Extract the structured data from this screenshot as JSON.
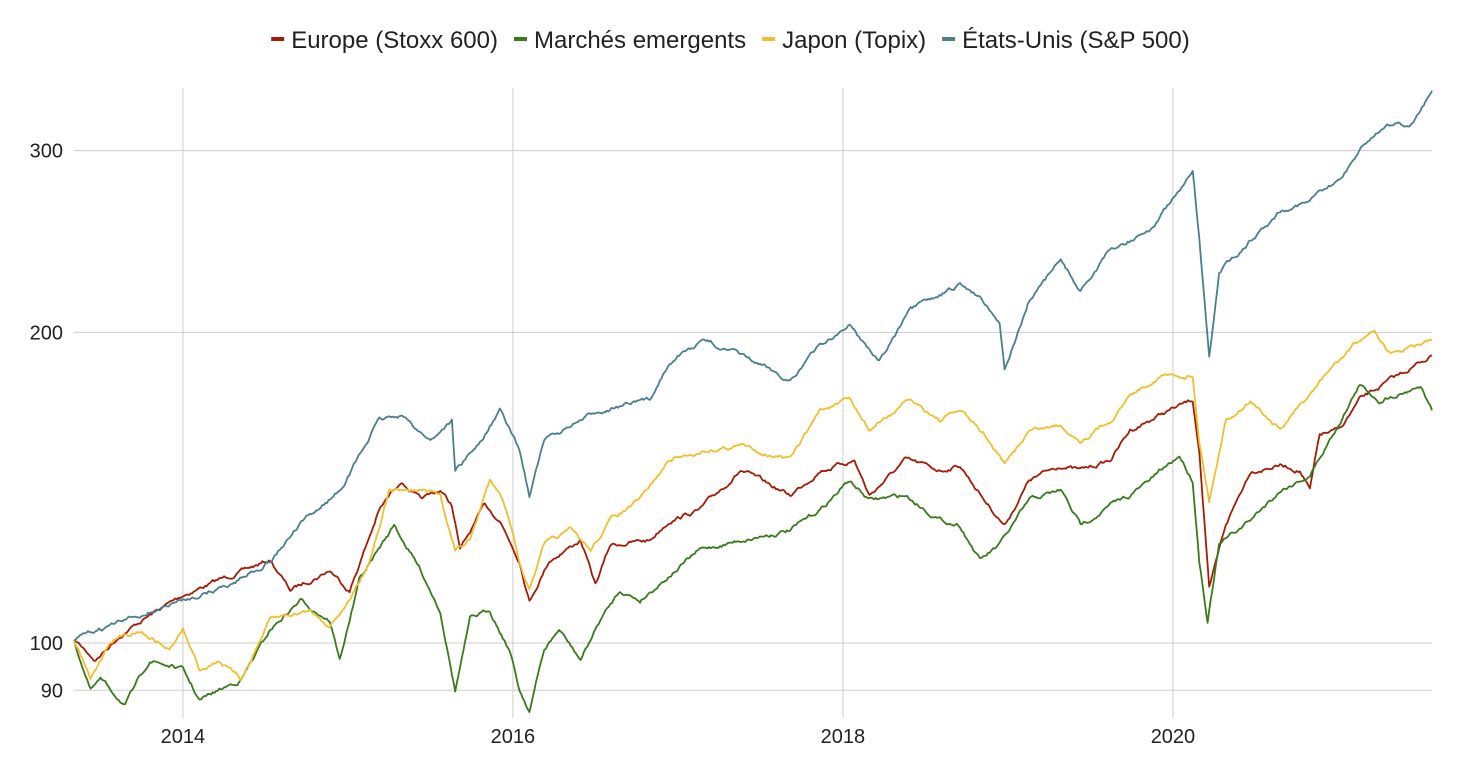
{
  "chart_data": {
    "type": "line",
    "title": "",
    "xlabel": "",
    "ylabel": "",
    "y_scale": "log",
    "ylim": [
      84.6,
      345
    ],
    "xlim": [
      2013.34,
      2021.57
    ],
    "grid": true,
    "legend_position": "top-center",
    "x_ticks": [
      2014,
      2016,
      2018,
      2020
    ],
    "x_tick_labels": [
      "2014",
      "2016",
      "2018",
      "2020"
    ],
    "y_ticks": [
      90,
      100,
      200,
      300
    ],
    "y_tick_labels": [
      "90",
      "100",
      "200",
      "300"
    ],
    "series": [
      {
        "name": "Europe (Stoxx 600)",
        "color": "#a31c06",
        "points": [
          [
            2013.34,
            100.7
          ],
          [
            2013.47,
            96.3
          ],
          [
            2013.62,
            101.8
          ],
          [
            2013.8,
            106.4
          ],
          [
            2014.0,
            111.3
          ],
          [
            2014.22,
            115.1
          ],
          [
            2014.53,
            120.3
          ],
          [
            2014.65,
            112.5
          ],
          [
            2014.89,
            117.7
          ],
          [
            2015.01,
            112.5
          ],
          [
            2015.19,
            134.5
          ],
          [
            2015.32,
            143.8
          ],
          [
            2015.44,
            137.5
          ],
          [
            2015.56,
            140.6
          ],
          [
            2015.63,
            136
          ],
          [
            2015.68,
            123
          ],
          [
            2015.83,
            136
          ],
          [
            2015.92,
            131.6
          ],
          [
            2016.04,
            120.3
          ],
          [
            2016.1,
            110
          ],
          [
            2016.22,
            120.3
          ],
          [
            2016.41,
            125.8
          ],
          [
            2016.5,
            113.8
          ],
          [
            2016.59,
            124.4
          ],
          [
            2016.83,
            125.8
          ],
          [
            2016.95,
            131.6
          ],
          [
            2017.13,
            134.5
          ],
          [
            2017.38,
            147
          ],
          [
            2017.68,
            139
          ],
          [
            2017.86,
            147
          ],
          [
            2018.07,
            150.4
          ],
          [
            2018.16,
            139
          ],
          [
            2018.38,
            150.4
          ],
          [
            2018.59,
            147
          ],
          [
            2018.71,
            148.7
          ],
          [
            2018.86,
            137.5
          ],
          [
            2018.98,
            130.1
          ],
          [
            2019.13,
            143.8
          ],
          [
            2019.32,
            148.7
          ],
          [
            2019.44,
            147
          ],
          [
            2019.62,
            150.4
          ],
          [
            2019.74,
            160.8
          ],
          [
            2019.98,
            168.1
          ],
          [
            2020.12,
            171.9
          ],
          [
            2020.16,
            153.7
          ],
          [
            2020.22,
            112.5
          ],
          [
            2020.32,
            130.1
          ],
          [
            2020.47,
            147
          ],
          [
            2020.65,
            148.7
          ],
          [
            2020.77,
            147
          ],
          [
            2020.83,
            140.6
          ],
          [
            2020.89,
            159
          ],
          [
            2021.01,
            160.8
          ],
          [
            2021.13,
            171.9
          ],
          [
            2021.32,
            179.8
          ],
          [
            2021.57,
            190
          ]
        ]
      },
      {
        "name": "Marchés emergents",
        "color": "#3a7a1c",
        "points": [
          [
            2013.34,
            100.7
          ],
          [
            2013.44,
            90
          ],
          [
            2013.5,
            92.1
          ],
          [
            2013.65,
            87.1
          ],
          [
            2013.8,
            96.3
          ],
          [
            2014.0,
            94.2
          ],
          [
            2014.1,
            88
          ],
          [
            2014.22,
            90
          ],
          [
            2014.35,
            92.1
          ],
          [
            2014.53,
            103
          ],
          [
            2014.71,
            110
          ],
          [
            2014.89,
            105.3
          ],
          [
            2014.95,
            96.3
          ],
          [
            2015.07,
            115.1
          ],
          [
            2015.28,
            130.1
          ],
          [
            2015.44,
            117.7
          ],
          [
            2015.56,
            107.6
          ],
          [
            2015.65,
            90
          ],
          [
            2015.74,
            105.3
          ],
          [
            2015.86,
            107.6
          ],
          [
            2015.98,
            98.5
          ],
          [
            2016.04,
            90
          ],
          [
            2016.1,
            86.1
          ],
          [
            2016.19,
            98.5
          ],
          [
            2016.28,
            103
          ],
          [
            2016.41,
            96.3
          ],
          [
            2016.53,
            105.3
          ],
          [
            2016.65,
            112.5
          ],
          [
            2016.77,
            110
          ],
          [
            2016.95,
            116.4
          ],
          [
            2017.13,
            123
          ],
          [
            2017.38,
            125.8
          ],
          [
            2017.68,
            128.6
          ],
          [
            2017.86,
            134.5
          ],
          [
            2018.04,
            143.8
          ],
          [
            2018.16,
            137.5
          ],
          [
            2018.38,
            139
          ],
          [
            2018.59,
            131.6
          ],
          [
            2018.71,
            130.1
          ],
          [
            2018.83,
            120.3
          ],
          [
            2018.95,
            124.4
          ],
          [
            2019.13,
            137.5
          ],
          [
            2019.32,
            140.6
          ],
          [
            2019.44,
            130.1
          ],
          [
            2019.62,
            136
          ],
          [
            2019.74,
            139
          ],
          [
            2019.86,
            143.8
          ],
          [
            2020.04,
            152
          ],
          [
            2020.12,
            143.8
          ],
          [
            2020.16,
            120.3
          ],
          [
            2020.21,
            105.3
          ],
          [
            2020.28,
            124.4
          ],
          [
            2020.47,
            131.6
          ],
          [
            2020.65,
            140.6
          ],
          [
            2020.83,
            145.4
          ],
          [
            2020.95,
            157.2
          ],
          [
            2021.13,
            177.8
          ],
          [
            2021.25,
            171.9
          ],
          [
            2021.5,
            177.8
          ],
          [
            2021.57,
            168.1
          ]
        ]
      },
      {
        "name": "Japon (Topix)",
        "color": "#f1bf2e",
        "points": [
          [
            2013.34,
            100.7
          ],
          [
            2013.44,
            92.1
          ],
          [
            2013.56,
            100.7
          ],
          [
            2013.74,
            103
          ],
          [
            2013.92,
            98.5
          ],
          [
            2014.0,
            103
          ],
          [
            2014.1,
            94.2
          ],
          [
            2014.22,
            96.3
          ],
          [
            2014.35,
            92.1
          ],
          [
            2014.53,
            105.3
          ],
          [
            2014.77,
            107.6
          ],
          [
            2014.89,
            104.1
          ],
          [
            2015.01,
            110
          ],
          [
            2015.13,
            120.3
          ],
          [
            2015.25,
            140.6
          ],
          [
            2015.44,
            140.6
          ],
          [
            2015.56,
            139
          ],
          [
            2015.65,
            123
          ],
          [
            2015.74,
            125.8
          ],
          [
            2015.86,
            143.8
          ],
          [
            2015.92,
            140.6
          ],
          [
            2015.98,
            131.6
          ],
          [
            2016.04,
            120.3
          ],
          [
            2016.1,
            112.5
          ],
          [
            2016.19,
            124.4
          ],
          [
            2016.35,
            128.6
          ],
          [
            2016.47,
            123
          ],
          [
            2016.59,
            131.6
          ],
          [
            2016.77,
            137.5
          ],
          [
            2016.95,
            150.4
          ],
          [
            2017.16,
            153.7
          ],
          [
            2017.38,
            155.4
          ],
          [
            2017.68,
            150.4
          ],
          [
            2017.86,
            168.1
          ],
          [
            2018.04,
            171.9
          ],
          [
            2018.16,
            160.8
          ],
          [
            2018.41,
            171.9
          ],
          [
            2018.59,
            164.4
          ],
          [
            2018.71,
            168.1
          ],
          [
            2018.86,
            159
          ],
          [
            2018.98,
            148.7
          ],
          [
            2019.13,
            160.8
          ],
          [
            2019.32,
            162.6
          ],
          [
            2019.44,
            157.2
          ],
          [
            2019.62,
            164.4
          ],
          [
            2019.74,
            173.8
          ],
          [
            2019.92,
            181.6
          ],
          [
            2020.12,
            181.6
          ],
          [
            2020.16,
            157.2
          ],
          [
            2020.22,
            137.5
          ],
          [
            2020.32,
            164.4
          ],
          [
            2020.47,
            171.9
          ],
          [
            2020.65,
            160.8
          ],
          [
            2020.83,
            173.8
          ],
          [
            2020.95,
            183.9
          ],
          [
            2021.13,
            196.4
          ],
          [
            2021.22,
            201
          ],
          [
            2021.32,
            190
          ],
          [
            2021.57,
            196.4
          ]
        ]
      },
      {
        "name": "États-Unis (S&P 500)",
        "color": "#4a7f8e",
        "points": [
          [
            2013.34,
            100.7
          ],
          [
            2013.5,
            103
          ],
          [
            2013.74,
            106.4
          ],
          [
            2014.0,
            110
          ],
          [
            2014.28,
            113.8
          ],
          [
            2014.53,
            120.3
          ],
          [
            2014.71,
            130.1
          ],
          [
            2014.95,
            140.6
          ],
          [
            2015.19,
            164.4
          ],
          [
            2015.32,
            166.2
          ],
          [
            2015.5,
            157.2
          ],
          [
            2015.63,
            164.4
          ],
          [
            2015.65,
            147
          ],
          [
            2015.8,
            156.3
          ],
          [
            2015.92,
            168.1
          ],
          [
            2016.04,
            153.7
          ],
          [
            2016.1,
            139
          ],
          [
            2016.19,
            157.2
          ],
          [
            2016.53,
            168.1
          ],
          [
            2016.83,
            171.9
          ],
          [
            2016.95,
            187.9
          ],
          [
            2017.16,
            196.4
          ],
          [
            2017.38,
            190
          ],
          [
            2017.68,
            179.8
          ],
          [
            2017.86,
            194.3
          ],
          [
            2018.04,
            203.1
          ],
          [
            2018.22,
            187.9
          ],
          [
            2018.41,
            210
          ],
          [
            2018.71,
            222
          ],
          [
            2018.83,
            217
          ],
          [
            2018.95,
            205
          ],
          [
            2018.98,
            183.9
          ],
          [
            2019.13,
            214.8
          ],
          [
            2019.32,
            234.8
          ],
          [
            2019.44,
            219.5
          ],
          [
            2019.62,
            240
          ],
          [
            2019.86,
            251
          ],
          [
            2020.12,
            284.5
          ],
          [
            2020.16,
            245.5
          ],
          [
            2020.22,
            187.9
          ],
          [
            2020.28,
            229.5
          ],
          [
            2020.47,
            245.5
          ],
          [
            2020.65,
            262.5
          ],
          [
            2020.83,
            268.5
          ],
          [
            2021.01,
            280.7
          ],
          [
            2021.13,
            300.6
          ],
          [
            2021.28,
            317.7
          ],
          [
            2021.44,
            317.7
          ],
          [
            2021.57,
            343
          ]
        ]
      }
    ]
  }
}
